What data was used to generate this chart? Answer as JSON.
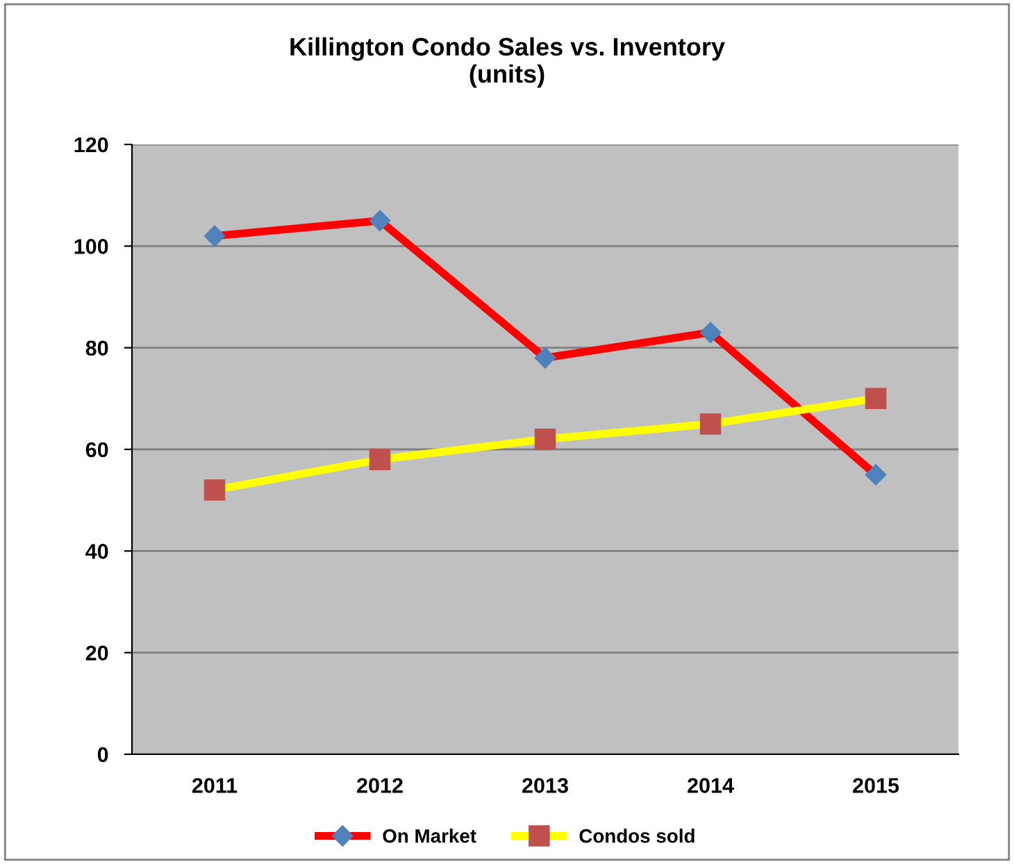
{
  "chart_data": {
    "type": "line",
    "title": "Killington Condo Sales vs. Inventory\n(units)",
    "categories": [
      "2011",
      "2012",
      "2013",
      "2014",
      "2015"
    ],
    "series": [
      {
        "name": "On Market",
        "color": "#ff0000",
        "marker": "diamond",
        "values": [
          102,
          105,
          78,
          83,
          55
        ]
      },
      {
        "name": "Condos sold",
        "color": "#ffff00",
        "marker": "square",
        "values": [
          52,
          58,
          62,
          65,
          70
        ]
      }
    ],
    "ylim": [
      0,
      120
    ],
    "yticks": [
      0,
      20,
      40,
      60,
      80,
      100,
      120
    ],
    "grid": "y",
    "legend": "bottom"
  }
}
